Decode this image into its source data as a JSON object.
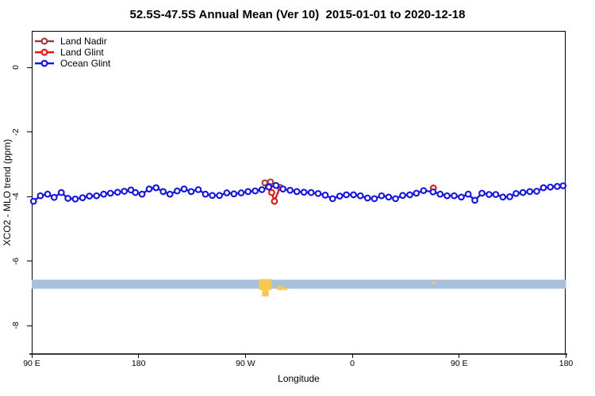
{
  "title": "52.5S-47.5S Annual Mean (Ver 10)  2015-01-01 to 2020-12-18",
  "axes": {
    "x": {
      "label": "Longitude"
    },
    "y": {
      "label": "XCO2 - MLO trend (ppm)"
    }
  },
  "legend": {
    "items": [
      {
        "label": "Land Nadir",
        "color": "#A53A3A"
      },
      {
        "label": "Land Glint",
        "color": "#EE1111"
      },
      {
        "label": "Ocean Glint",
        "color": "#1313EE"
      }
    ]
  },
  "chart_data": {
    "type": "line",
    "title": "52.5S-47.5S Annual Mean (Ver 10)  2015-01-01 to 2020-12-18",
    "xlabel": "Longitude",
    "ylabel": "XCO2 - MLO trend (ppm)",
    "x_unit": "degrees eastward from 90E; axis tick sequence wraps 90E, 180, 90W, 0, 90E, 180",
    "xlim": [
      0,
      450
    ],
    "ylim": [
      -8.88,
      1.13
    ],
    "grid": false,
    "legend_position": "top-left inside plot",
    "x_ticks": [
      {
        "pos": 0,
        "label": "90 E"
      },
      {
        "pos": 90,
        "label": "180"
      },
      {
        "pos": 180,
        "label": "90 W"
      },
      {
        "pos": 270,
        "label": "0"
      },
      {
        "pos": 360,
        "label": "90 E"
      },
      {
        "pos": 450,
        "label": "180"
      }
    ],
    "y_ticks": [
      {
        "pos": 0,
        "label": "0"
      },
      {
        "pos": -2,
        "label": "-2"
      },
      {
        "pos": -4,
        "label": "-4"
      },
      {
        "pos": -6,
        "label": "-6"
      },
      {
        "pos": -8,
        "label": "-8"
      }
    ],
    "series": [
      {
        "name": "Land Nadir",
        "color": "#A53A3A",
        "marker": "open-circle",
        "segments": [
          [
            [
              196.4,
              -3.58
            ],
            [
              201.1,
              -3.55
            ]
          ]
        ]
      },
      {
        "name": "Land Glint",
        "color": "#EE1111",
        "marker": "open-circle",
        "segments": [
          [
            [
              199.3,
              -3.68
            ],
            [
              202.1,
              -3.88
            ],
            [
              204.4,
              -4.15
            ],
            [
              209.1,
              -3.72
            ]
          ],
          [
            [
              338.3,
              -3.74
            ]
          ]
        ]
      },
      {
        "name": "Ocean Glint",
        "color": "#1313EE",
        "marker": "open-circle",
        "segments": [
          [
            [
              1.5,
              -4.15
            ],
            [
              7.3,
              -3.98
            ],
            [
              13.4,
              -3.93
            ],
            [
              18.9,
              -4.03
            ],
            [
              24.9,
              -3.88
            ],
            [
              30.5,
              -4.06
            ],
            [
              36.7,
              -4.08
            ],
            [
              42.8,
              -4.04
            ],
            [
              48.6,
              -3.99
            ],
            [
              54.6,
              -3.98
            ],
            [
              60.6,
              -3.93
            ],
            [
              66.3,
              -3.9
            ],
            [
              72.3,
              -3.87
            ],
            [
              78,
              -3.84
            ],
            [
              83.5,
              -3.8
            ],
            [
              87.3,
              -3.88
            ],
            [
              92.9,
              -3.93
            ],
            [
              98.9,
              -3.77
            ],
            [
              104.7,
              -3.73
            ],
            [
              110.7,
              -3.85
            ],
            [
              116.4,
              -3.93
            ],
            [
              122.5,
              -3.83
            ],
            [
              128.3,
              -3.77
            ],
            [
              134.3,
              -3.85
            ],
            [
              140.3,
              -3.79
            ],
            [
              146.3,
              -3.93
            ],
            [
              152.1,
              -3.97
            ],
            [
              158.1,
              -3.97
            ],
            [
              164.3,
              -3.89
            ],
            [
              170.3,
              -3.92
            ],
            [
              176.4,
              -3.89
            ],
            [
              182.2,
              -3.85
            ],
            [
              188.2,
              -3.83
            ],
            [
              193.9,
              -3.79
            ],
            [
              199.7,
              -3.71
            ],
            [
              205.7,
              -3.66
            ],
            [
              211.6,
              -3.77
            ],
            [
              217.6,
              -3.81
            ],
            [
              223.3,
              -3.85
            ],
            [
              229.3,
              -3.87
            ],
            [
              235.3,
              -3.88
            ],
            [
              241.2,
              -3.91
            ],
            [
              247.2,
              -3.96
            ],
            [
              253.4,
              -4.07
            ],
            [
              259.4,
              -3.99
            ],
            [
              265,
              -3.95
            ],
            [
              271,
              -3.95
            ],
            [
              276.8,
              -3.98
            ],
            [
              282.8,
              -4.05
            ],
            [
              288.6,
              -4.07
            ],
            [
              294.6,
              -3.98
            ],
            [
              300.6,
              -4.02
            ],
            [
              306.4,
              -4.07
            ],
            [
              312.4,
              -3.97
            ],
            [
              318.4,
              -3.95
            ],
            [
              324,
              -3.9
            ],
            [
              330,
              -3.82
            ],
            [
              338,
              -3.86
            ],
            [
              344,
              -3.93
            ],
            [
              349.8,
              -3.98
            ],
            [
              355.8,
              -3.98
            ],
            [
              361.8,
              -4.02
            ],
            [
              367.6,
              -3.93
            ],
            [
              373.2,
              -4.12
            ],
            [
              379.2,
              -3.9
            ],
            [
              385.2,
              -3.94
            ],
            [
              390.8,
              -3.94
            ],
            [
              396.8,
              -4.02
            ],
            [
              402.6,
              -4.01
            ],
            [
              407.9,
              -3.91
            ],
            [
              413.7,
              -3.88
            ],
            [
              419.5,
              -3.85
            ],
            [
              425.3,
              -3.84
            ],
            [
              431,
              -3.73
            ],
            [
              436.8,
              -3.71
            ],
            [
              442.6,
              -3.69
            ],
            [
              447.5,
              -3.67
            ]
          ]
        ]
      }
    ],
    "band": {
      "color": "#A9C0DB",
      "y_top": -6.58,
      "y_bottom": -6.86,
      "x_start": 0,
      "x_end": 450
    },
    "yellow_marks": {
      "color": "#F7C94F",
      "rects": [
        [
          191.5,
          202,
          -6.56,
          -6.9
        ],
        [
          194,
          199.5,
          -6.9,
          -7.1
        ],
        [
          206.5,
          212,
          -6.78,
          -6.9
        ],
        [
          212.5,
          215,
          -6.82,
          -6.9
        ],
        [
          337.6,
          339.6,
          -6.62,
          -6.72
        ]
      ]
    }
  }
}
